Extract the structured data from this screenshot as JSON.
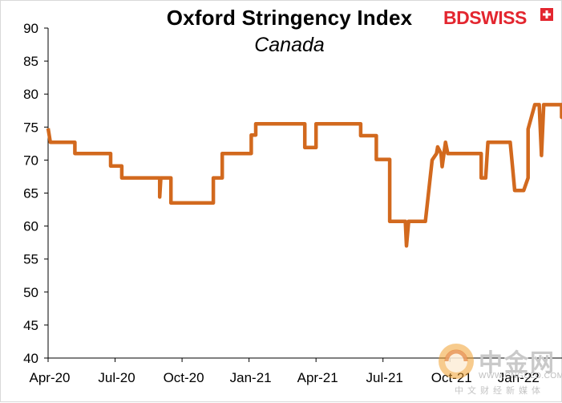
{
  "chart_data": {
    "type": "line",
    "title": "Oxford Stringency Index",
    "subtitle": "Canada",
    "xlabel": "",
    "ylabel": "",
    "ylim": [
      40,
      90
    ],
    "yticks": [
      "40",
      "45",
      "50",
      "55",
      "60",
      "65",
      "70",
      "75",
      "80",
      "85",
      "90"
    ],
    "xlim": [
      0,
      22.3
    ],
    "xticks": [
      {
        "label": "Apr-20",
        "x": 0
      },
      {
        "label": "Jul-20",
        "x": 3
      },
      {
        "label": "Oct-20",
        "x": 6
      },
      {
        "label": "Jan-21",
        "x": 9
      },
      {
        "label": "Apr-21",
        "x": 12
      },
      {
        "label": "Jul-21",
        "x": 15
      },
      {
        "label": "Oct-21",
        "x": 18
      },
      {
        "label": "Jan-22",
        "x": 21
      }
    ],
    "series": [
      {
        "name": "Canada",
        "color": "#d2691e",
        "points": [
          [
            0.0,
            74.8
          ],
          [
            0.1,
            72.7
          ],
          [
            1.2,
            72.7
          ],
          [
            1.2,
            71.0
          ],
          [
            2.8,
            71.0
          ],
          [
            2.8,
            69.1
          ],
          [
            3.3,
            69.1
          ],
          [
            3.3,
            67.3
          ],
          [
            5.0,
            67.3
          ],
          [
            5.0,
            64.4
          ],
          [
            5.05,
            67.3
          ],
          [
            5.5,
            67.3
          ],
          [
            5.5,
            63.5
          ],
          [
            7.4,
            63.5
          ],
          [
            7.4,
            67.3
          ],
          [
            7.8,
            67.3
          ],
          [
            7.8,
            71.0
          ],
          [
            9.1,
            71.0
          ],
          [
            9.1,
            73.8
          ],
          [
            9.3,
            73.8
          ],
          [
            9.3,
            75.5
          ],
          [
            11.5,
            75.5
          ],
          [
            11.5,
            71.9
          ],
          [
            12.0,
            71.9
          ],
          [
            12.0,
            75.5
          ],
          [
            14.0,
            75.5
          ],
          [
            14.0,
            73.7
          ],
          [
            14.7,
            73.7
          ],
          [
            14.7,
            70.1
          ],
          [
            15.3,
            70.1
          ],
          [
            15.3,
            60.7
          ],
          [
            16.0,
            60.7
          ],
          [
            16.05,
            57.0
          ],
          [
            16.15,
            60.7
          ],
          [
            16.9,
            60.7
          ],
          [
            17.2,
            70.0
          ],
          [
            17.4,
            71.0
          ],
          [
            17.45,
            72.0
          ],
          [
            17.6,
            71.0
          ],
          [
            17.65,
            69.0
          ],
          [
            17.8,
            72.7
          ],
          [
            17.9,
            71.0
          ],
          [
            19.4,
            71.0
          ],
          [
            19.4,
            67.3
          ],
          [
            19.6,
            67.3
          ],
          [
            19.7,
            72.7
          ],
          [
            20.7,
            72.7
          ],
          [
            20.8,
            69.1
          ],
          [
            20.9,
            65.4
          ],
          [
            21.3,
            65.4
          ],
          [
            21.5,
            67.3
          ],
          [
            21.5,
            74.7
          ],
          [
            21.8,
            78.4
          ],
          [
            22.0,
            78.4
          ],
          [
            22.1,
            70.7
          ],
          [
            22.2,
            78.4
          ],
          [
            23.0,
            78.4
          ],
          [
            23.0,
            76.5
          ],
          [
            23.3,
            76.5
          ]
        ]
      }
    ]
  },
  "brand": {
    "name": "BDSWISS",
    "color": "#e3262f"
  },
  "watermark": {
    "name_cn": "中金网",
    "url": "WWW.CNGOLD.COM.CN",
    "subtitle_cn": "中文财经新媒体"
  }
}
